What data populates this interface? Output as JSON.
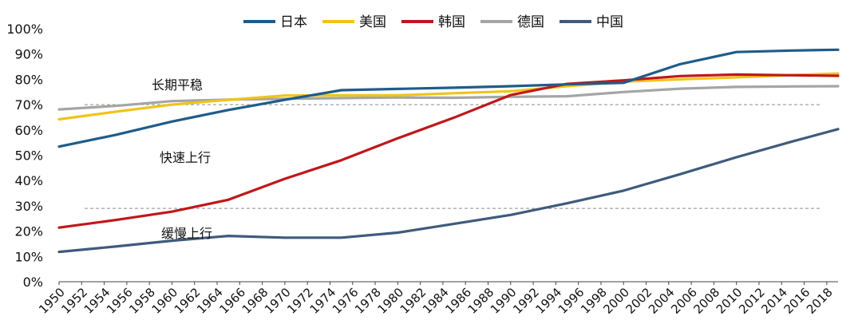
{
  "chart_data": {
    "type": "line",
    "title": "",
    "xlabel": "",
    "ylabel": "",
    "ylim": [
      0,
      100
    ],
    "y_ticks": [
      "0%",
      "10%",
      "20%",
      "30%",
      "40%",
      "50%",
      "60%",
      "70%",
      "80%",
      "90%",
      "100%"
    ],
    "x_ticks": [
      1950,
      1952,
      1954,
      1956,
      1958,
      1960,
      1962,
      1964,
      1966,
      1968,
      1970,
      1972,
      1974,
      1976,
      1978,
      1980,
      1982,
      1984,
      1986,
      1988,
      1990,
      1992,
      1994,
      1996,
      1998,
      2000,
      2002,
      2004,
      2006,
      2008,
      2010,
      2012,
      2014,
      2016,
      2018
    ],
    "x": [
      1950,
      1955,
      1960,
      1965,
      1970,
      1975,
      1980,
      1985,
      1990,
      1995,
      2000,
      2005,
      2010,
      2015,
      2019
    ],
    "grid": false,
    "legend_position": "top",
    "reference_lines": [
      70,
      29
    ],
    "annotations": [
      "长期平稳",
      "快速上行",
      "缓慢上行"
    ],
    "series": [
      {
        "name": "日本",
        "color": "#1f5c8a",
        "values": [
          53.4,
          58.0,
          63.3,
          67.9,
          71.9,
          75.7,
          76.2,
          76.7,
          77.3,
          78.0,
          78.6,
          86.0,
          90.8,
          91.4,
          91.7
        ]
      },
      {
        "name": "美国",
        "color": "#f0c419",
        "values": [
          64.2,
          67.2,
          70.0,
          71.9,
          73.6,
          73.7,
          73.7,
          74.5,
          75.3,
          77.3,
          79.1,
          80.0,
          80.8,
          81.7,
          82.3
        ]
      },
      {
        "name": "韩国",
        "color": "#c0171b",
        "values": [
          21.4,
          24.4,
          27.7,
          32.4,
          40.7,
          48.0,
          56.7,
          64.9,
          73.8,
          78.2,
          79.6,
          81.3,
          81.9,
          81.6,
          81.4
        ]
      },
      {
        "name": "德国",
        "color": "#a5a5a5",
        "values": [
          68.1,
          69.5,
          71.4,
          72.0,
          72.3,
          72.6,
          72.8,
          72.7,
          73.1,
          73.3,
          75.0,
          76.3,
          77.0,
          77.2,
          77.3
        ]
      },
      {
        "name": "中国",
        "color": "#3f5b7c",
        "values": [
          11.8,
          13.9,
          16.2,
          18.1,
          17.4,
          17.4,
          19.4,
          22.9,
          26.4,
          31.0,
          36.0,
          42.5,
          49.2,
          55.5,
          60.3
        ]
      }
    ]
  }
}
